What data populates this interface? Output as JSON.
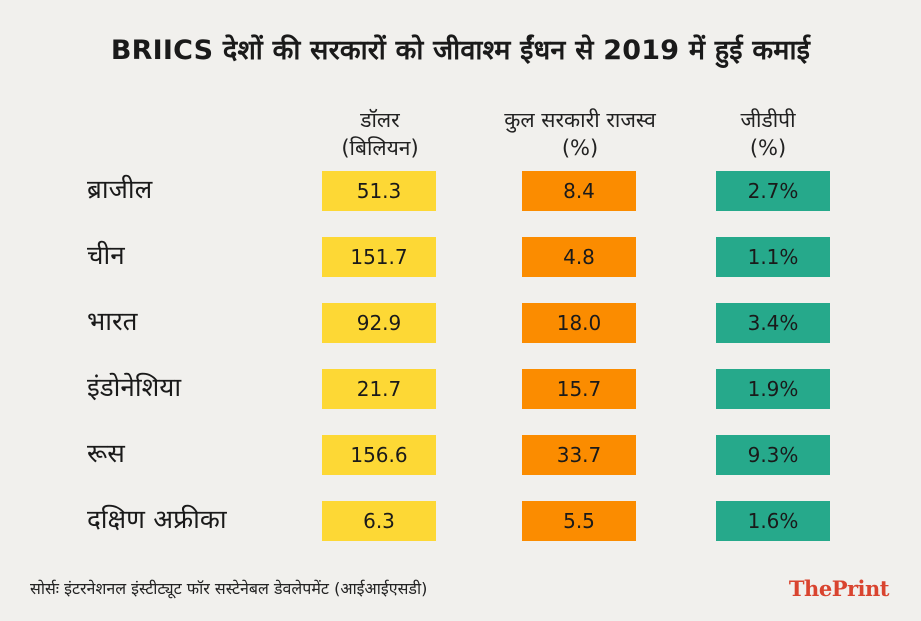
{
  "title": "BRIICS देशों की सरकारों को जीवाश्म ईंधन से 2019 में हुई कमाई",
  "column_headers": [
    {
      "line1": "डॉलर",
      "line2": "(बिलियन)"
    },
    {
      "line1": "कुल सरकारी राजस्व",
      "line2": "(%)"
    },
    {
      "line1": "जीडीपी",
      "line2": "(%)"
    }
  ],
  "colors": {
    "col1": "#fdd835",
    "col2": "#fb8c00",
    "col3": "#26a98b",
    "brand": "#d9442f"
  },
  "chart_data": {
    "type": "table",
    "title": "BRIICS देशों की सरकारों को जीवाश्म ईंधन से 2019 में हुई कमाई",
    "columns": [
      "डॉलर (बिलियन)",
      "कुल सरकारी राजस्व (%)",
      "जीडीपी (%)"
    ],
    "rows": [
      {
        "country": "ब्राजील",
        "values": [
          "51.3",
          "8.4",
          "2.7%"
        ]
      },
      {
        "country": "चीन",
        "values": [
          "151.7",
          "4.8",
          "1.1%"
        ]
      },
      {
        "country": "भारत",
        "values": [
          "92.9",
          "18.0",
          "3.4%"
        ]
      },
      {
        "country": "इंडोनेशिया",
        "values": [
          "21.7",
          "15.7",
          "1.9%"
        ]
      },
      {
        "country": "रूस",
        "values": [
          "156.6",
          "33.7",
          "9.3%"
        ]
      },
      {
        "country": "दक्षिण अफ्रीका",
        "values": [
          "6.3",
          "5.5",
          "1.6%"
        ]
      }
    ]
  },
  "footer": {
    "source": "सोर्सः इंटरनेशनल इंस्टीट्यूट फॉर सस्टेनेबल डेवलेपमेंट (आईआईएसडी)"
  },
  "brand": {
    "part1": "The",
    "part2": "Print"
  }
}
